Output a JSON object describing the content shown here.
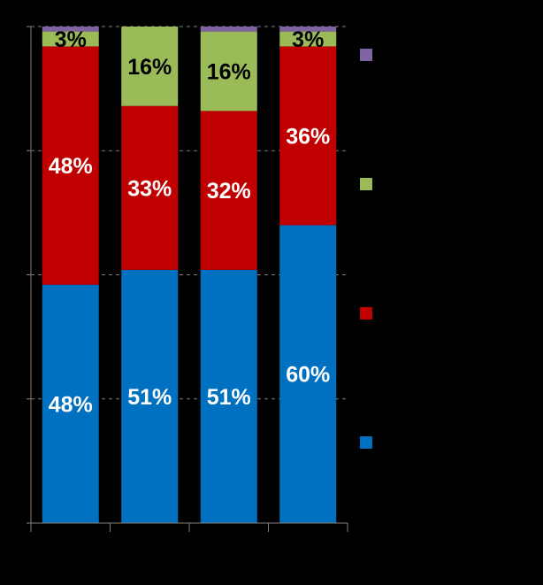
{
  "chart_data": {
    "type": "bar",
    "stacked": true,
    "categories": [
      "",
      "",
      "",
      ""
    ],
    "series": [
      {
        "values": [
          48,
          51,
          51,
          60
        ],
        "labels": [
          "48%",
          "51%",
          "51%",
          "60%"
        ],
        "color": "#0070C0",
        "label_color": "#ffffff"
      },
      {
        "values": [
          48,
          33,
          32,
          36
        ],
        "labels": [
          "48%",
          "33%",
          "32%",
          "36%"
        ],
        "color": "#C00000",
        "label_color": "#ffffff"
      },
      {
        "values": [
          3,
          16,
          16,
          3
        ],
        "labels": [
          "3%",
          "16%",
          "16%",
          "3%"
        ],
        "color": "#9BBB59",
        "label_color": "#000000"
      },
      {
        "values": [
          1,
          0,
          1,
          1
        ],
        "labels": [
          "",
          "",
          "",
          ""
        ],
        "color": "#8064A2",
        "label_color": "#ffffff"
      }
    ],
    "legend": {
      "position": "right",
      "order": [
        "series-4",
        "series-3",
        "series-2",
        "series-1"
      ]
    },
    "ylim": [
      0,
      100
    ],
    "grid": true,
    "background": "#000000",
    "title": "",
    "xlabel": "",
    "ylabel": ""
  }
}
